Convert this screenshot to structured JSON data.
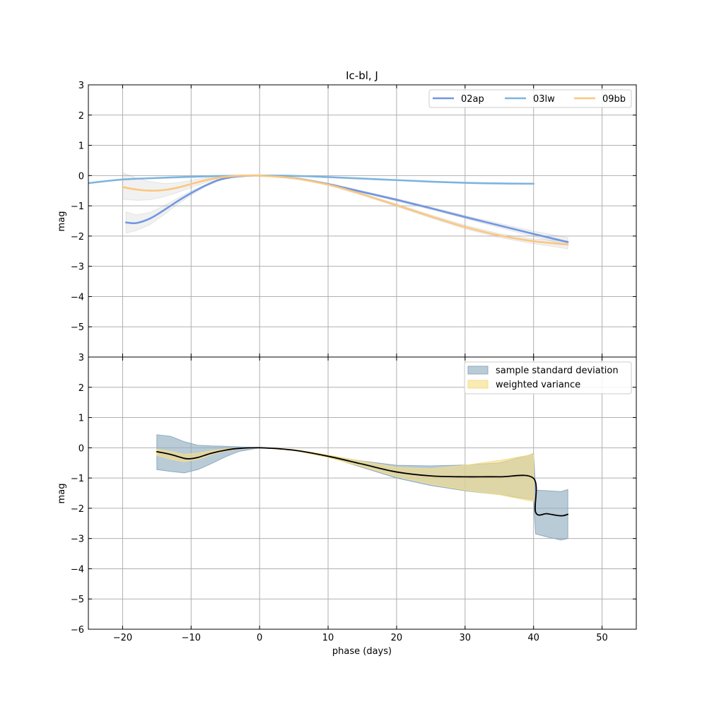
{
  "chart_data": {
    "type": "line",
    "title": "Ic-bl, J",
    "xlabel": "phase (days)",
    "xlim": [
      -25,
      55
    ],
    "x_ticks": [
      -20,
      -10,
      0,
      10,
      20,
      30,
      40,
      50
    ],
    "x_tick_labels": [
      "−20",
      "−10",
      "0",
      "10",
      "20",
      "30",
      "40",
      "50"
    ],
    "grid": true,
    "panels": [
      {
        "ylabel": "mag",
        "ylim": [
          -6,
          3
        ],
        "y_ticks": [
          3,
          2,
          1,
          0,
          -1,
          -2,
          -3,
          -4,
          -5
        ],
        "y_tick_labels": [
          "3",
          "2",
          "1",
          "0",
          "−1",
          "−2",
          "−3",
          "−4",
          "−5"
        ],
        "legend_position": "top-right",
        "legend_columns": 3,
        "series": [
          {
            "name": "02ap",
            "color": "#7097e3",
            "x": [
              -19.5,
              -18,
              -16,
              -14,
              -12,
              -10,
              -8,
              -6,
              -4,
              -2,
              0,
              5,
              10,
              15,
              20,
              25,
              30,
              35,
              40,
              45
            ],
            "y": [
              -1.55,
              -1.57,
              -1.42,
              -1.15,
              -0.85,
              -0.58,
              -0.34,
              -0.15,
              -0.05,
              -0.01,
              0.0,
              -0.08,
              -0.28,
              -0.54,
              -0.8,
              -1.08,
              -1.37,
              -1.65,
              -1.93,
              -2.2
            ],
            "band_lower": [
              -1.9,
              -1.82,
              -1.62,
              -1.3,
              -0.95,
              -0.65,
              -0.38,
              -0.17,
              -0.06,
              -0.01,
              0.0,
              -0.09,
              -0.3,
              -0.57,
              -0.84,
              -1.12,
              -1.42,
              -1.72,
              -2.02,
              -2.3
            ],
            "band_upper": [
              -1.2,
              -1.3,
              -1.22,
              -1.0,
              -0.75,
              -0.51,
              -0.3,
              -0.13,
              -0.04,
              -0.01,
              0.0,
              -0.07,
              -0.26,
              -0.51,
              -0.76,
              -1.04,
              -1.32,
              -1.58,
              -1.84,
              -2.05
            ]
          },
          {
            "name": "03lw",
            "color": "#7db4df",
            "x": [
              -25,
              -20,
              -15,
              -10,
              -5,
              0,
              5,
              10,
              15,
              20,
              25,
              30,
              35,
              40
            ],
            "y": [
              -0.25,
              -0.13,
              -0.08,
              -0.04,
              -0.01,
              0.0,
              -0.01,
              -0.05,
              -0.1,
              -0.15,
              -0.2,
              -0.24,
              -0.26,
              -0.27
            ]
          },
          {
            "name": "09bb",
            "color": "#fbc77e",
            "x": [
              -20,
              -18,
              -16,
              -14,
              -12,
              -10,
              -8,
              -6,
              -4,
              -2,
              0,
              5,
              10,
              15,
              20,
              25,
              30,
              35,
              40,
              45
            ],
            "y": [
              -0.38,
              -0.46,
              -0.5,
              -0.48,
              -0.4,
              -0.28,
              -0.16,
              -0.07,
              -0.02,
              0.0,
              0.0,
              -0.09,
              -0.3,
              -0.62,
              -0.98,
              -1.35,
              -1.7,
              -1.98,
              -2.17,
              -2.28
            ],
            "band_lower": [
              -0.78,
              -0.82,
              -0.8,
              -0.7,
              -0.56,
              -0.4,
              -0.24,
              -0.11,
              -0.04,
              -0.01,
              0.0,
              -0.1,
              -0.32,
              -0.65,
              -1.02,
              -1.4,
              -1.76,
              -2.05,
              -2.25,
              -2.42
            ],
            "band_upper": [
              0.1,
              -0.08,
              -0.2,
              -0.26,
              -0.24,
              -0.16,
              -0.08,
              -0.03,
              -0.01,
              0.0,
              0.0,
              -0.08,
              -0.28,
              -0.59,
              -0.94,
              -1.3,
              -1.64,
              -1.92,
              -2.1,
              -2.16
            ]
          }
        ]
      },
      {
        "ylabel": "mag",
        "ylim": [
          -6,
          3
        ],
        "y_ticks": [
          3,
          2,
          1,
          0,
          -1,
          -2,
          -3,
          -4,
          -5,
          -6
        ],
        "y_tick_labels": [
          "3",
          "2",
          "1",
          "0",
          "−1",
          "−2",
          "−3",
          "−4",
          "−5",
          "−6"
        ],
        "legend_position": "top-right",
        "legend_columns": 1,
        "bands": [
          {
            "name": "sample standard deviation",
            "color": "#8eabbe",
            "x": [
              -15,
              -13,
              -11,
              -9,
              -7,
              -5,
              -3,
              0,
              5,
              10,
              15,
              20,
              25,
              30,
              35,
              40,
              40.3,
              42,
              44,
              45
            ],
            "upper": [
              0.43,
              0.38,
              0.2,
              0.08,
              0.06,
              0.05,
              0.03,
              0.0,
              -0.07,
              -0.25,
              -0.44,
              -0.58,
              -0.6,
              -0.57,
              -0.5,
              -0.2,
              -1.4,
              -1.42,
              -1.45,
              -1.38
            ],
            "lower": [
              -0.72,
              -0.78,
              -0.83,
              -0.72,
              -0.52,
              -0.3,
              -0.12,
              0.0,
              -0.07,
              -0.3,
              -0.65,
              -1.0,
              -1.25,
              -1.42,
              -1.55,
              -1.72,
              -2.85,
              -2.95,
              -3.05,
              -3.0
            ]
          },
          {
            "name": "weighted variance",
            "color": "#f6de87",
            "x": [
              -15,
              -13,
              -11,
              -9,
              -7,
              -5,
              -3,
              0,
              5,
              10,
              15,
              20,
              25,
              30,
              35,
              40
            ],
            "upper": [
              -0.05,
              -0.12,
              -0.22,
              -0.18,
              -0.1,
              -0.04,
              -0.01,
              0.0,
              -0.06,
              -0.24,
              -0.45,
              -0.65,
              -0.7,
              -0.58,
              -0.42,
              -0.22
            ],
            "lower": [
              -0.25,
              -0.38,
              -0.46,
              -0.38,
              -0.22,
              -0.1,
              -0.03,
              0.0,
              -0.09,
              -0.32,
              -0.62,
              -0.95,
              -1.2,
              -1.4,
              -1.55,
              -1.78
            ]
          }
        ],
        "series": [
          {
            "name": "",
            "color": "#000000",
            "x": [
              -15,
              -13,
              -11,
              -10,
              -9,
              -7,
              -5,
              -3,
              0,
              5,
              10,
              15,
              20,
              25,
              30,
              35,
              40,
              40.3,
              42,
              44,
              45
            ],
            "y": [
              -0.13,
              -0.22,
              -0.35,
              -0.36,
              -0.32,
              -0.18,
              -0.08,
              -0.02,
              0.0,
              -0.08,
              -0.28,
              -0.54,
              -0.8,
              -0.93,
              -0.96,
              -0.96,
              -1.01,
              -2.13,
              -2.18,
              -2.25,
              -2.2
            ]
          }
        ]
      }
    ]
  }
}
